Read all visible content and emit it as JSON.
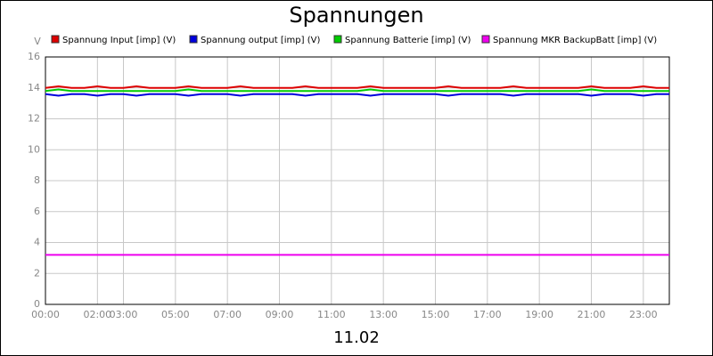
{
  "chart_data": {
    "type": "line",
    "title": "Spannungen",
    "subtitle": "11.02",
    "y_label": "V",
    "x": [
      0,
      0.5,
      1,
      1.5,
      2,
      2.5,
      3,
      3.5,
      4,
      4.5,
      5,
      5.5,
      6,
      6.5,
      7,
      7.5,
      8,
      8.5,
      9,
      9.5,
      10,
      10.5,
      11,
      11.5,
      12,
      12.5,
      13,
      13.5,
      14,
      14.5,
      15,
      15.5,
      16,
      16.5,
      17,
      17.5,
      18,
      18.5,
      19,
      19.5,
      20,
      20.5,
      21,
      21.5,
      22,
      22.5,
      23,
      23.5,
      24
    ],
    "series": [
      {
        "name": "Spannung Input [imp] (V)",
        "color": "#dd0000",
        "values": [
          14.0,
          14.1,
          14.0,
          14.0,
          14.1,
          14.0,
          14.0,
          14.1,
          14.0,
          14.0,
          14.0,
          14.1,
          14.0,
          14.0,
          14.0,
          14.1,
          14.0,
          14.0,
          14.0,
          14.0,
          14.1,
          14.0,
          14.0,
          14.0,
          14.0,
          14.1,
          14.0,
          14.0,
          14.0,
          14.0,
          14.0,
          14.1,
          14.0,
          14.0,
          14.0,
          14.0,
          14.1,
          14.0,
          14.0,
          14.0,
          14.0,
          14.0,
          14.1,
          14.0,
          14.0,
          14.0,
          14.1,
          14.0,
          14.0
        ]
      },
      {
        "name": "Spannung output [imp] (V)",
        "color": "#0000dd",
        "values": [
          13.6,
          13.5,
          13.6,
          13.6,
          13.5,
          13.6,
          13.6,
          13.5,
          13.6,
          13.6,
          13.6,
          13.5,
          13.6,
          13.6,
          13.6,
          13.5,
          13.6,
          13.6,
          13.6,
          13.6,
          13.5,
          13.6,
          13.6,
          13.6,
          13.6,
          13.5,
          13.6,
          13.6,
          13.6,
          13.6,
          13.6,
          13.5,
          13.6,
          13.6,
          13.6,
          13.6,
          13.5,
          13.6,
          13.6,
          13.6,
          13.6,
          13.6,
          13.5,
          13.6,
          13.6,
          13.6,
          13.5,
          13.6,
          13.6
        ]
      },
      {
        "name": "Spannung Batterie [imp] (V)",
        "color": "#00cc00",
        "values": [
          13.8,
          13.9,
          13.8,
          13.8,
          13.8,
          13.8,
          13.8,
          13.8,
          13.8,
          13.8,
          13.8,
          13.9,
          13.8,
          13.8,
          13.8,
          13.8,
          13.8,
          13.8,
          13.8,
          13.8,
          13.8,
          13.8,
          13.8,
          13.8,
          13.8,
          13.9,
          13.8,
          13.8,
          13.8,
          13.8,
          13.8,
          13.8,
          13.8,
          13.8,
          13.8,
          13.8,
          13.8,
          13.8,
          13.8,
          13.8,
          13.8,
          13.8,
          13.9,
          13.8,
          13.8,
          13.8,
          13.8,
          13.8,
          13.8
        ]
      },
      {
        "name": "Spannung MKR BackupBatt [imp] (V)",
        "color": "#ee00ee",
        "values": [
          3.2,
          3.2,
          3.2,
          3.2,
          3.2,
          3.2,
          3.2,
          3.2,
          3.2,
          3.2,
          3.2,
          3.2,
          3.2,
          3.2,
          3.2,
          3.2,
          3.2,
          3.2,
          3.2,
          3.2,
          3.2,
          3.2,
          3.2,
          3.2,
          3.2,
          3.2,
          3.2,
          3.2,
          3.2,
          3.2,
          3.2,
          3.2,
          3.2,
          3.2,
          3.2,
          3.2,
          3.2,
          3.2,
          3.2,
          3.2,
          3.2,
          3.2,
          3.2,
          3.2,
          3.2,
          3.2,
          3.2,
          3.2,
          3.2
        ]
      }
    ],
    "xlim": [
      0,
      24
    ],
    "xticks": [
      {
        "value": 0,
        "label": "00:00"
      },
      {
        "value": 2,
        "label": "02:00"
      },
      {
        "value": 3,
        "label": "03:00"
      },
      {
        "value": 5,
        "label": "05:00"
      },
      {
        "value": 7,
        "label": "07:00"
      },
      {
        "value": 9,
        "label": "09:00"
      },
      {
        "value": 11,
        "label": "11:00"
      },
      {
        "value": 13,
        "label": "13:00"
      },
      {
        "value": 15,
        "label": "15:00"
      },
      {
        "value": 17,
        "label": "17:00"
      },
      {
        "value": 19,
        "label": "19:00"
      },
      {
        "value": 21,
        "label": "21:00"
      },
      {
        "value": 23,
        "label": "23:00"
      }
    ],
    "ylim": [
      0,
      16
    ],
    "yticks": [
      0,
      2,
      4,
      6,
      8,
      10,
      12,
      14,
      16
    ],
    "grid": true
  }
}
